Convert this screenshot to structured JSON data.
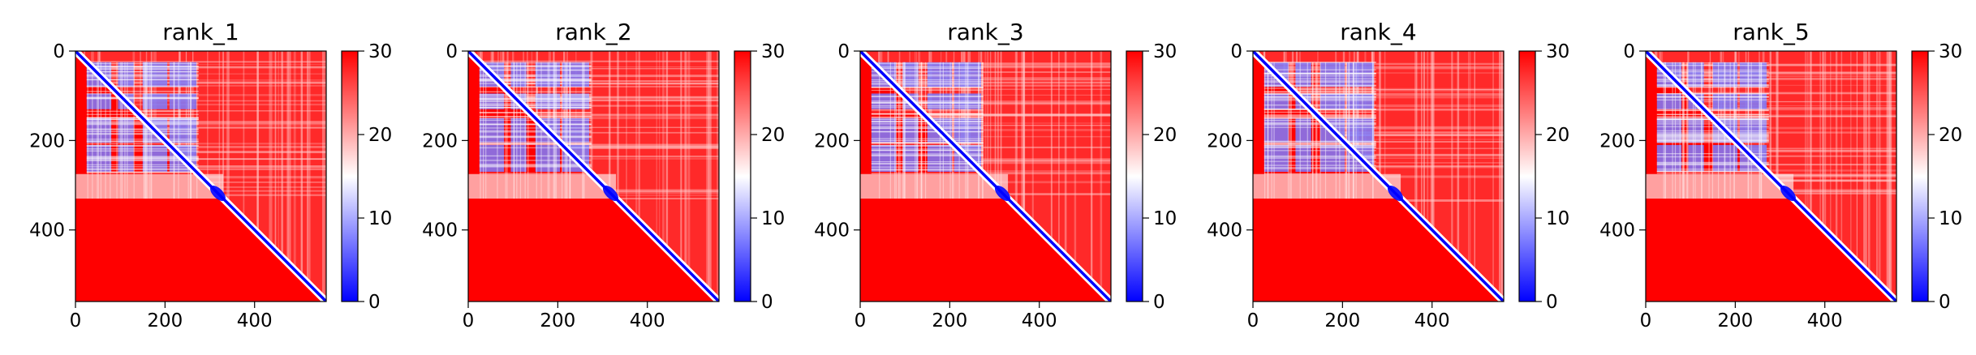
{
  "chart_data": [
    {
      "type": "heatmap",
      "title": "rank_1",
      "xlabel": "",
      "ylabel": "",
      "xlim": [
        0,
        560
      ],
      "ylim": [
        560,
        0
      ],
      "x_ticks": [
        "0",
        "200",
        "400"
      ],
      "y_ticks": [
        "0",
        "200",
        "400"
      ],
      "colorbar": {
        "ticks": [
          "0",
          "10",
          "20",
          "30"
        ],
        "range": [
          0,
          30
        ],
        "colormap": "bwr"
      }
    },
    {
      "type": "heatmap",
      "title": "rank_2",
      "xlabel": "",
      "ylabel": "",
      "xlim": [
        0,
        560
      ],
      "ylim": [
        560,
        0
      ],
      "x_ticks": [
        "0",
        "200",
        "400"
      ],
      "y_ticks": [
        "0",
        "200",
        "400"
      ],
      "colorbar": {
        "ticks": [
          "0",
          "10",
          "20",
          "30"
        ],
        "range": [
          0,
          30
        ],
        "colormap": "bwr"
      }
    },
    {
      "type": "heatmap",
      "title": "rank_3",
      "xlabel": "",
      "ylabel": "",
      "xlim": [
        0,
        560
      ],
      "ylim": [
        560,
        0
      ],
      "x_ticks": [
        "0",
        "200",
        "400"
      ],
      "y_ticks": [
        "0",
        "200",
        "400"
      ],
      "colorbar": {
        "ticks": [
          "0",
          "10",
          "20",
          "30"
        ],
        "range": [
          0,
          30
        ],
        "colormap": "bwr"
      }
    },
    {
      "type": "heatmap",
      "title": "rank_4",
      "xlabel": "",
      "ylabel": "",
      "xlim": [
        0,
        560
      ],
      "ylim": [
        560,
        0
      ],
      "x_ticks": [
        "0",
        "200",
        "400"
      ],
      "y_ticks": [
        "0",
        "200",
        "400"
      ],
      "colorbar": {
        "ticks": [
          "0",
          "10",
          "20",
          "30"
        ],
        "range": [
          0,
          30
        ],
        "colormap": "bwr"
      }
    },
    {
      "type": "heatmap",
      "title": "rank_5",
      "xlabel": "",
      "ylabel": "",
      "xlim": [
        0,
        560
      ],
      "ylim": [
        560,
        0
      ],
      "x_ticks": [
        "0",
        "200",
        "400"
      ],
      "y_ticks": [
        "0",
        "200",
        "400"
      ],
      "colorbar": {
        "ticks": [
          "0",
          "10",
          "20",
          "30"
        ],
        "range": [
          0,
          30
        ],
        "colormap": "bwr"
      }
    }
  ],
  "colors": {
    "low": "#0000ff",
    "mid": "#ffffff",
    "high": "#ff0000"
  }
}
